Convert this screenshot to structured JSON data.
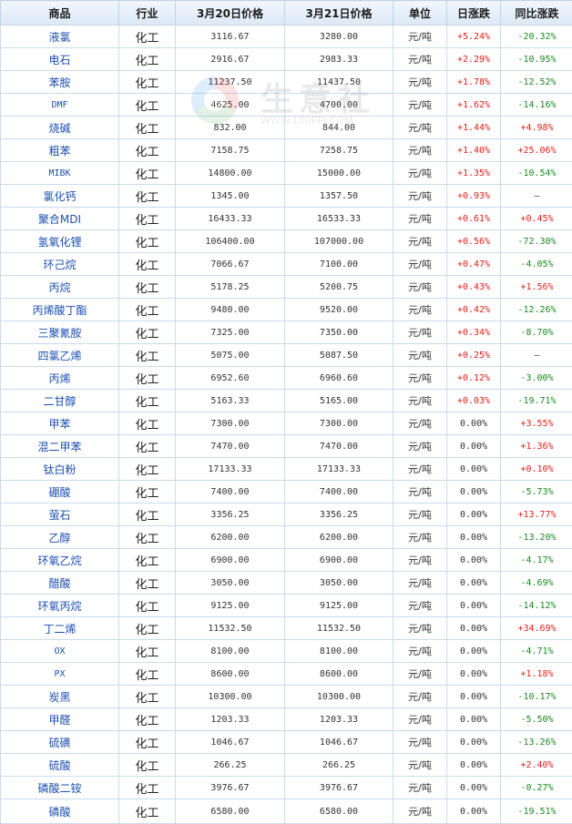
{
  "table": {
    "headers": [
      "商品",
      "行业",
      "3月20日价格",
      "3月21日价格",
      "单位",
      "日涨跌",
      "同比涨跌"
    ],
    "rows": [
      {
        "name": "液氯",
        "industry": "化工",
        "price_0320": "3116.67",
        "price_0321": "3280.00",
        "unit": "元/吨",
        "daily_change": "+5.24%",
        "yoy_change": "-20.32%"
      },
      {
        "name": "电石",
        "industry": "化工",
        "price_0320": "2916.67",
        "price_0321": "2983.33",
        "unit": "元/吨",
        "daily_change": "+2.29%",
        "yoy_change": "-10.95%"
      },
      {
        "name": "苯胺",
        "industry": "化工",
        "price_0320": "11237.50",
        "price_0321": "11437.50",
        "unit": "元/吨",
        "daily_change": "+1.78%",
        "yoy_change": "-12.52%"
      },
      {
        "name": "DMF",
        "industry": "化工",
        "price_0320": "4625.00",
        "price_0321": "4700.00",
        "unit": "元/吨",
        "daily_change": "+1.62%",
        "yoy_change": "-14.16%"
      },
      {
        "name": "烧碱",
        "industry": "化工",
        "price_0320": "832.00",
        "price_0321": "844.00",
        "unit": "元/吨",
        "daily_change": "+1.44%",
        "yoy_change": "+4.98%"
      },
      {
        "name": "粗苯",
        "industry": "化工",
        "price_0320": "7158.75",
        "price_0321": "7258.75",
        "unit": "元/吨",
        "daily_change": "+1.40%",
        "yoy_change": "+25.06%"
      },
      {
        "name": "MIBK",
        "industry": "化工",
        "price_0320": "14800.00",
        "price_0321": "15000.00",
        "unit": "元/吨",
        "daily_change": "+1.35%",
        "yoy_change": "-10.54%"
      },
      {
        "name": "氯化钙",
        "industry": "化工",
        "price_0320": "1345.00",
        "price_0321": "1357.50",
        "unit": "元/吨",
        "daily_change": "+0.93%",
        "yoy_change": "—"
      },
      {
        "name": "聚合MDI",
        "industry": "化工",
        "price_0320": "16433.33",
        "price_0321": "16533.33",
        "unit": "元/吨",
        "daily_change": "+0.61%",
        "yoy_change": "+0.45%"
      },
      {
        "name": "氢氧化锂",
        "industry": "化工",
        "price_0320": "106400.00",
        "price_0321": "107000.00",
        "unit": "元/吨",
        "daily_change": "+0.56%",
        "yoy_change": "-72.30%"
      },
      {
        "name": "环己烷",
        "industry": "化工",
        "price_0320": "7066.67",
        "price_0321": "7100.00",
        "unit": "元/吨",
        "daily_change": "+0.47%",
        "yoy_change": "-4.05%"
      },
      {
        "name": "丙烷",
        "industry": "化工",
        "price_0320": "5178.25",
        "price_0321": "5200.75",
        "unit": "元/吨",
        "daily_change": "+0.43%",
        "yoy_change": "+1.56%"
      },
      {
        "name": "丙烯酸丁酯",
        "industry": "化工",
        "price_0320": "9480.00",
        "price_0321": "9520.00",
        "unit": "元/吨",
        "daily_change": "+0.42%",
        "yoy_change": "-12.26%"
      },
      {
        "name": "三聚氰胺",
        "industry": "化工",
        "price_0320": "7325.00",
        "price_0321": "7350.00",
        "unit": "元/吨",
        "daily_change": "+0.34%",
        "yoy_change": "-8.70%"
      },
      {
        "name": "四氯乙烯",
        "industry": "化工",
        "price_0320": "5075.00",
        "price_0321": "5087.50",
        "unit": "元/吨",
        "daily_change": "+0.25%",
        "yoy_change": "—"
      },
      {
        "name": "丙烯",
        "industry": "化工",
        "price_0320": "6952.60",
        "price_0321": "6960.60",
        "unit": "元/吨",
        "daily_change": "+0.12%",
        "yoy_change": "-3.00%"
      },
      {
        "name": "二甘醇",
        "industry": "化工",
        "price_0320": "5163.33",
        "price_0321": "5165.00",
        "unit": "元/吨",
        "daily_change": "+0.03%",
        "yoy_change": "-19.71%"
      },
      {
        "name": "甲苯",
        "industry": "化工",
        "price_0320": "7300.00",
        "price_0321": "7300.00",
        "unit": "元/吨",
        "daily_change": "0.00%",
        "yoy_change": "+3.55%"
      },
      {
        "name": "混二甲苯",
        "industry": "化工",
        "price_0320": "7470.00",
        "price_0321": "7470.00",
        "unit": "元/吨",
        "daily_change": "0.00%",
        "yoy_change": "+1.36%"
      },
      {
        "name": "钛白粉",
        "industry": "化工",
        "price_0320": "17133.33",
        "price_0321": "17133.33",
        "unit": "元/吨",
        "daily_change": "0.00%",
        "yoy_change": "+0.10%"
      },
      {
        "name": "硼酸",
        "industry": "化工",
        "price_0320": "7400.00",
        "price_0321": "7400.00",
        "unit": "元/吨",
        "daily_change": "0.00%",
        "yoy_change": "-5.73%"
      },
      {
        "name": "萤石",
        "industry": "化工",
        "price_0320": "3356.25",
        "price_0321": "3356.25",
        "unit": "元/吨",
        "daily_change": "0.00%",
        "yoy_change": "+13.77%"
      },
      {
        "name": "乙醇",
        "industry": "化工",
        "price_0320": "6200.00",
        "price_0321": "6200.00",
        "unit": "元/吨",
        "daily_change": "0.00%",
        "yoy_change": "-13.20%"
      },
      {
        "name": "环氧乙烷",
        "industry": "化工",
        "price_0320": "6900.00",
        "price_0321": "6900.00",
        "unit": "元/吨",
        "daily_change": "0.00%",
        "yoy_change": "-4.17%"
      },
      {
        "name": "醋酸",
        "industry": "化工",
        "price_0320": "3050.00",
        "price_0321": "3050.00",
        "unit": "元/吨",
        "daily_change": "0.00%",
        "yoy_change": "-4.69%"
      },
      {
        "name": "环氧丙烷",
        "industry": "化工",
        "price_0320": "9125.00",
        "price_0321": "9125.00",
        "unit": "元/吨",
        "daily_change": "0.00%",
        "yoy_change": "-14.12%"
      },
      {
        "name": "丁二烯",
        "industry": "化工",
        "price_0320": "11532.50",
        "price_0321": "11532.50",
        "unit": "元/吨",
        "daily_change": "0.00%",
        "yoy_change": "+34.69%"
      },
      {
        "name": "OX",
        "industry": "化工",
        "price_0320": "8100.00",
        "price_0321": "8100.00",
        "unit": "元/吨",
        "daily_change": "0.00%",
        "yoy_change": "-4.71%"
      },
      {
        "name": "PX",
        "industry": "化工",
        "price_0320": "8600.00",
        "price_0321": "8600.00",
        "unit": "元/吨",
        "daily_change": "0.00%",
        "yoy_change": "+1.18%"
      },
      {
        "name": "炭黑",
        "industry": "化工",
        "price_0320": "10300.00",
        "price_0321": "10300.00",
        "unit": "元/吨",
        "daily_change": "0.00%",
        "yoy_change": "-10.17%"
      },
      {
        "name": "甲醛",
        "industry": "化工",
        "price_0320": "1203.33",
        "price_0321": "1203.33",
        "unit": "元/吨",
        "daily_change": "0.00%",
        "yoy_change": "-5.50%"
      },
      {
        "name": "硫磺",
        "industry": "化工",
        "price_0320": "1046.67",
        "price_0321": "1046.67",
        "unit": "元/吨",
        "daily_change": "0.00%",
        "yoy_change": "-13.26%"
      },
      {
        "name": "硫酸",
        "industry": "化工",
        "price_0320": "266.25",
        "price_0321": "266.25",
        "unit": "元/吨",
        "daily_change": "0.00%",
        "yoy_change": "+2.40%"
      },
      {
        "name": "磷酸二铵",
        "industry": "化工",
        "price_0320": "3976.67",
        "price_0321": "3976.67",
        "unit": "元/吨",
        "daily_change": "0.00%",
        "yoy_change": "-0.27%"
      },
      {
        "name": "磷酸",
        "industry": "化工",
        "price_0320": "6580.00",
        "price_0321": "6580.00",
        "unit": "元/吨",
        "daily_change": "0.00%",
        "yoy_change": "-19.51%"
      }
    ]
  },
  "watermark": {
    "text": "生意社",
    "url": "WWW.100PPI.COM",
    "icon": "100ppi-logo-icon"
  },
  "colors": {
    "positive": "#e0201b",
    "negative": "#188a1d",
    "neutral": "#333333",
    "link": "#1a4fb0",
    "header_bg": "#dce8f6",
    "border": "#c9daee"
  }
}
